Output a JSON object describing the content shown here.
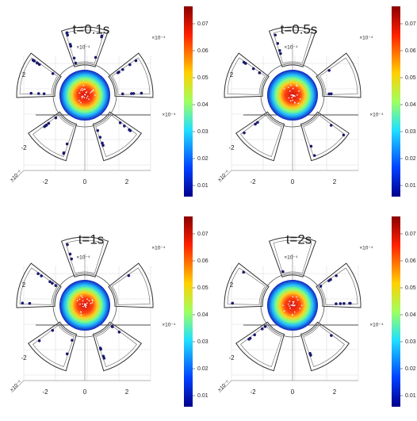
{
  "panels": [
    {
      "title": "t=0.1s",
      "colorbar_ticks": [
        "0.07",
        "0.06",
        "0.05",
        "0.04",
        "0.03",
        "0.02",
        "0.01"
      ],
      "y_ticks": [
        "2",
        "-2"
      ],
      "x_ticks": [
        "-2",
        "0",
        "2"
      ],
      "exponent_labels": [
        "×10⁻⁴",
        "×10⁻⁴",
        "×10⁻⁴"
      ],
      "z_label": "×10⁻⁵"
    },
    {
      "title": "t=0.5s",
      "colorbar_ticks": [
        "0.07",
        "0.06",
        "0.05",
        "0.04",
        "0.03",
        "0.02",
        "0.01"
      ],
      "y_ticks": [
        "2",
        "-2"
      ],
      "x_ticks": [
        "-2",
        "0",
        "2"
      ],
      "exponent_labels": [
        "×10⁻⁴",
        "×10⁻⁴",
        "×10⁻⁴"
      ],
      "z_label": "×10⁻⁵"
    },
    {
      "title": "t=1s",
      "colorbar_ticks": [
        "0.07",
        "0.06",
        "0.05",
        "0.04",
        "0.03",
        "0.02",
        "0.01"
      ],
      "y_ticks": [
        "2",
        "-2"
      ],
      "x_ticks": [
        "-2",
        "0",
        "2"
      ],
      "exponent_labels": [
        "×10⁻⁴",
        "×10⁻⁴",
        "×10⁻⁴"
      ],
      "z_label": "×10⁻⁵"
    },
    {
      "title": "t=2s",
      "colorbar_ticks": [
        "0.07",
        "0.06",
        "0.05",
        "0.04",
        "0.03",
        "0.02",
        "0.01"
      ],
      "y_ticks": [
        "2",
        "-2"
      ],
      "x_ticks": [
        "-2",
        "0",
        "2"
      ],
      "exponent_labels": [
        "×10⁻⁴",
        "×10⁻⁴",
        "×10⁻⁴"
      ],
      "z_label": "×10⁻⁵"
    }
  ]
}
